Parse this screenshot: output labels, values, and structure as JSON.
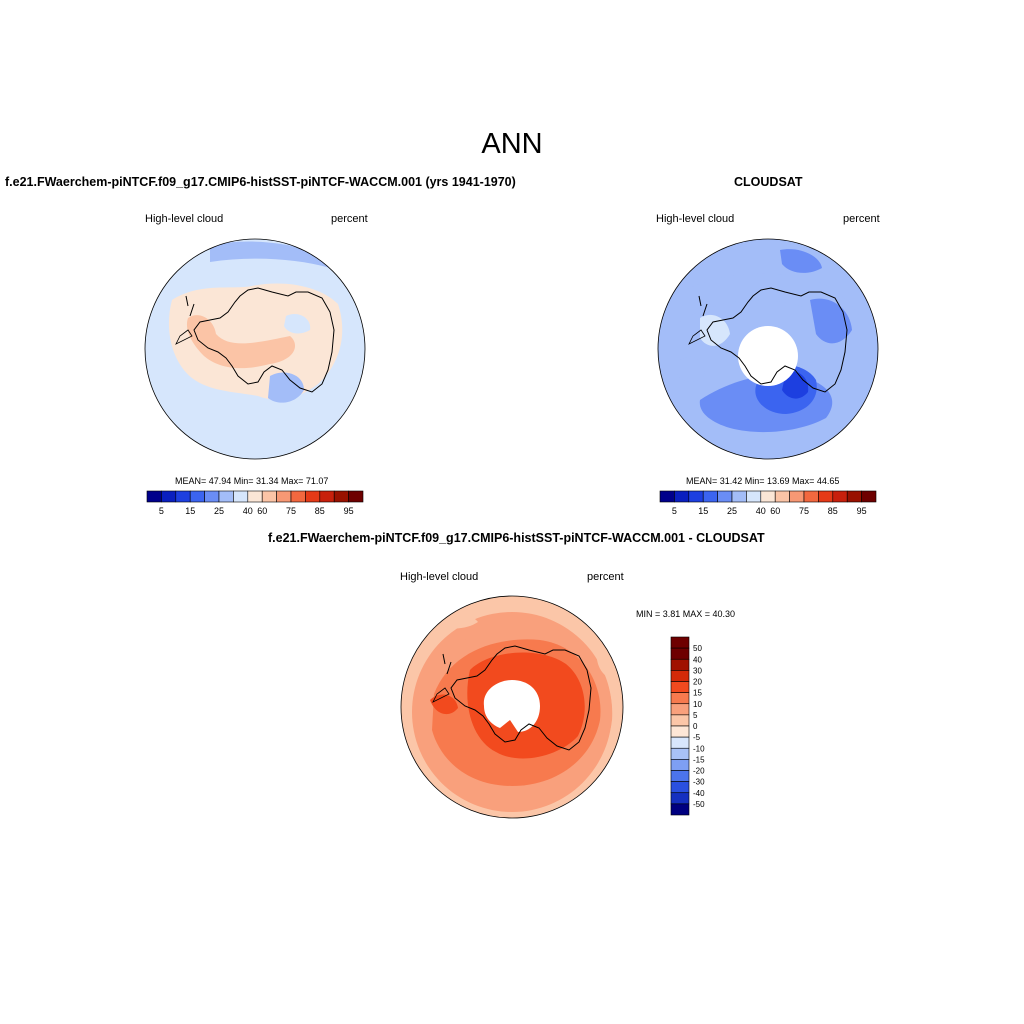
{
  "figure": {
    "title": "ANN"
  },
  "panels": [
    {
      "title": "f.e21.FWaerchem-piNTCF.f09_g17.CMIP6-histSST-piNTCF-WACCM.001 (yrs 1941-1970)",
      "variable_label": "High-level cloud",
      "units_label": "percent",
      "stats_text": "MEAN=  47.94  Min=  31.34  Max=  71.07",
      "stats": {
        "mean": 47.94,
        "min": 31.34,
        "max": 71.07
      },
      "colorbar_labels": [
        "5",
        "15",
        "25",
        "40",
        "60",
        "75",
        "85",
        "95"
      ]
    },
    {
      "title": "CLOUDSAT",
      "variable_label": "High-level cloud",
      "units_label": "percent",
      "stats_text": "MEAN=  31.42  Min=  13.69  Max=  44.65",
      "stats": {
        "mean": 31.42,
        "min": 13.69,
        "max": 44.65
      },
      "colorbar_labels": [
        "5",
        "15",
        "25",
        "40",
        "60",
        "75",
        "85",
        "95"
      ]
    },
    {
      "title": "f.e21.FWaerchem-piNTCF.f09_g17.CMIP6-histSST-piNTCF-WACCM.001 - CLOUDSAT",
      "variable_label": "High-level cloud",
      "units_label": "percent",
      "stats_text": "MIN =   3.81 MAX =  40.30",
      "stats": {
        "min": 3.81,
        "max": 40.3
      },
      "colorbar_labels": [
        "50",
        "40",
        "30",
        "20",
        "15",
        "10",
        "5",
        "0",
        "-5",
        "-10",
        "-15",
        "-20",
        "-30",
        "-40",
        "-50"
      ]
    }
  ],
  "colors": {
    "abs_colormap": [
      "#00008b",
      "#0a1fbf",
      "#1d3fe0",
      "#3b64f0",
      "#6a8df5",
      "#a3bdf8",
      "#d6e6fc",
      "#fbe6d6",
      "#fbc4a6",
      "#f79874",
      "#f2683f",
      "#e53a17",
      "#c8200c",
      "#991100",
      "#6e0000"
    ],
    "diff_colormap": [
      "#6e0000",
      "#a01200",
      "#d42a08",
      "#f24a1e",
      "#f77a4e",
      "#f9a07c",
      "#fbc6a8",
      "#fde6d6",
      "#d8e6fc",
      "#a9c2f8",
      "#7e9ff4",
      "#4c74ec",
      "#2a50e0",
      "#1530c0",
      "#000080"
    ]
  }
}
